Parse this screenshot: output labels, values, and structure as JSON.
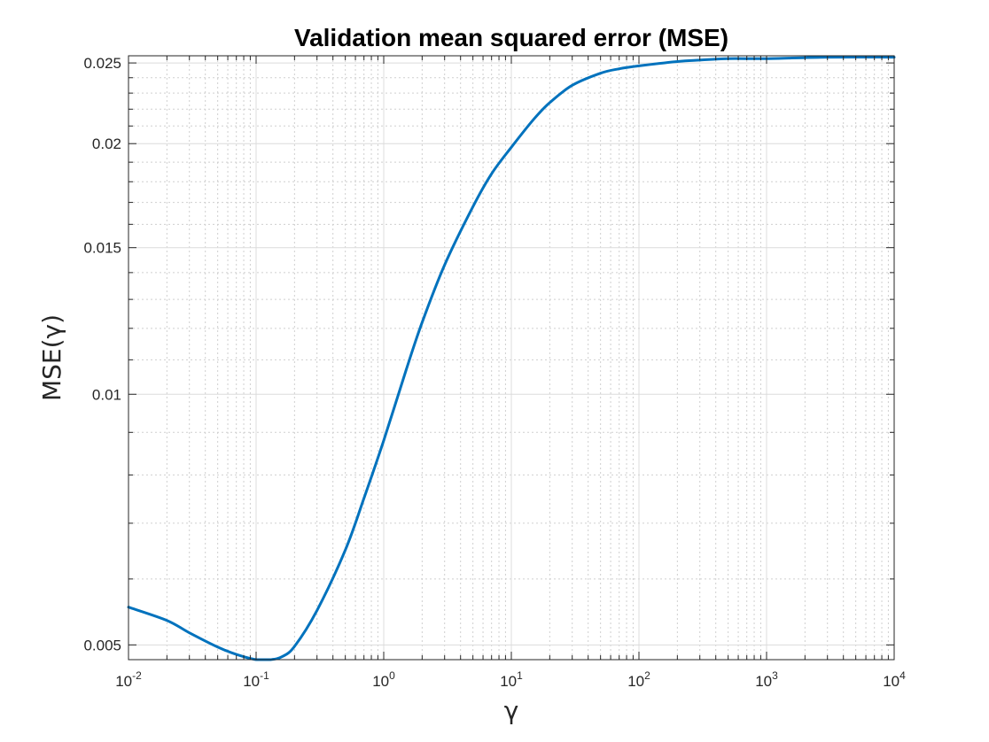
{
  "chart_data": {
    "type": "line",
    "title": "Validation mean squared error (MSE)",
    "xlabel": "γ",
    "ylabel": "MSE(γ)",
    "xscale": "log",
    "yscale": "log",
    "xlim": [
      0.01,
      10000
    ],
    "ylim": [
      0.0048,
      0.0255
    ],
    "grid": true,
    "minor_grid": true,
    "line_color": "#0072BD",
    "x_ticks": [
      {
        "base": "10",
        "exp": "-2"
      },
      {
        "base": "10",
        "exp": "-1"
      },
      {
        "base": "10",
        "exp": "0"
      },
      {
        "base": "10",
        "exp": "1"
      },
      {
        "base": "10",
        "exp": "2"
      },
      {
        "base": "10",
        "exp": "3"
      },
      {
        "base": "10",
        "exp": "4"
      }
    ],
    "y_ticks": [
      {
        "value": 0.005,
        "label": "0.005"
      },
      {
        "value": 0.01,
        "label": "0.01"
      },
      {
        "value": 0.015,
        "label": "0.015"
      },
      {
        "value": 0.02,
        "label": "0.02"
      },
      {
        "value": 0.025,
        "label": "0.025"
      }
    ],
    "series": [
      {
        "x": [
          0.01,
          0.02,
          0.03,
          0.05,
          0.07,
          0.1,
          0.13,
          0.16,
          0.2,
          0.3,
          0.5,
          0.7,
          1.0,
          1.5,
          2,
          3,
          5,
          7,
          10,
          15,
          20,
          30,
          50,
          70,
          100,
          200,
          300,
          500,
          1000,
          3000,
          10000
        ],
        "y": [
          0.00555,
          0.00535,
          0.00517,
          0.00497,
          0.00487,
          0.0048,
          0.0048,
          0.00484,
          0.00498,
          0.0055,
          0.0065,
          0.0075,
          0.0088,
          0.0107,
          0.0122,
          0.0143,
          0.0168,
          0.0184,
          0.0198,
          0.0214,
          0.0224,
          0.0235,
          0.0243,
          0.0246,
          0.0248,
          0.0251,
          0.0252,
          0.0253,
          0.0253,
          0.0254,
          0.0254
        ]
      }
    ]
  }
}
